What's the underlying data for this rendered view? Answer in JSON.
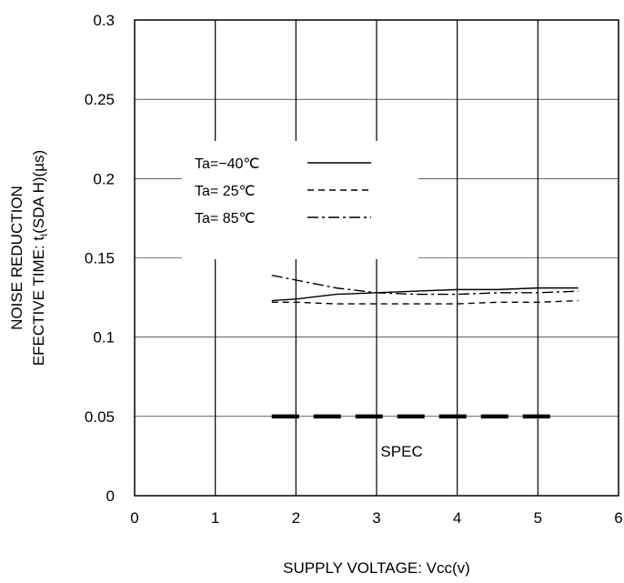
{
  "chart_data": {
    "type": "line",
    "title": "",
    "xlabel": "SUPPLY VOLTAGE: Vcc(v)",
    "ylabel_line1": "NOISE REDUCTION",
    "ylabel_line2_pre": "EFECTIVE TIME: t",
    "ylabel_line2_sub": "I",
    "ylabel_line2_post": "(SDA H)(µs)",
    "xlim": [
      0,
      6
    ],
    "ylim": [
      0,
      0.3
    ],
    "x_ticks": [
      "0",
      "1",
      "2",
      "3",
      "4",
      "5",
      "6"
    ],
    "y_ticks": [
      "0",
      "0.05",
      "0.1",
      "0.15",
      "0.2",
      "0.25",
      "0.3"
    ],
    "grid": true,
    "legend_position": "upper-left inside plot",
    "series": [
      {
        "name": "Ta=−40℃",
        "style": "solid",
        "x": [
          1.7,
          2.0,
          2.5,
          3.0,
          3.5,
          4.0,
          4.5,
          5.0,
          5.5
        ],
        "y": [
          0.123,
          0.124,
          0.127,
          0.128,
          0.129,
          0.13,
          0.13,
          0.131,
          0.131
        ]
      },
      {
        "name": "Ta= 25℃",
        "style": "dashed",
        "x": [
          1.7,
          2.0,
          2.5,
          3.0,
          3.5,
          4.0,
          4.5,
          5.0,
          5.5
        ],
        "y": [
          0.122,
          0.122,
          0.121,
          0.121,
          0.121,
          0.121,
          0.122,
          0.122,
          0.123
        ]
      },
      {
        "name": "Ta= 85℃",
        "style": "dashdot",
        "x": [
          1.7,
          2.0,
          2.5,
          3.0,
          3.5,
          4.0,
          4.5,
          5.0,
          5.5
        ],
        "y": [
          0.139,
          0.136,
          0.131,
          0.128,
          0.127,
          0.127,
          0.128,
          0.128,
          0.129
        ]
      }
    ],
    "spec": {
      "label": "SPEC",
      "value": 0.05,
      "x_range": [
        1.7,
        5.3
      ]
    }
  }
}
